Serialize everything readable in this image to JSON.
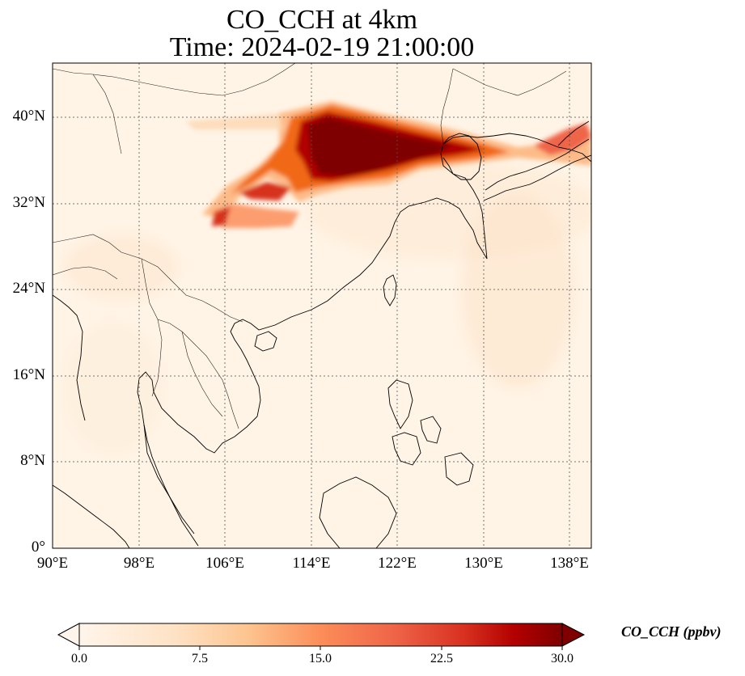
{
  "title": {
    "line1": "CO_CCH at 4km",
    "line2": "Time: 2024-02-19 21:00:00"
  },
  "map": {
    "lon_range": [
      90,
      140
    ],
    "lat_range": [
      0,
      45
    ],
    "gridlines": true,
    "gridline_style": "dotted",
    "lat_ticks": [
      "40°N",
      "32°N",
      "24°N",
      "16°N",
      "8°N",
      "0°"
    ],
    "lon_ticks": [
      "90°E",
      "98°E",
      "106°E",
      "114°E",
      "122°E",
      "130°E",
      "138°E"
    ],
    "features": [
      "coastlines",
      "country borders"
    ],
    "plume_description_colors": [
      "#fff5eb",
      "#fdd0a2",
      "#fd8d3c",
      "#d94801",
      "#7f0000"
    ]
  },
  "colorbar": {
    "label": "CO_CCH (ppbv)",
    "ticks": [
      "0.0",
      "7.5",
      "15.0",
      "22.5",
      "30.0"
    ],
    "range": [
      0,
      30
    ],
    "colormap": "OrRd",
    "extend": "both"
  }
}
